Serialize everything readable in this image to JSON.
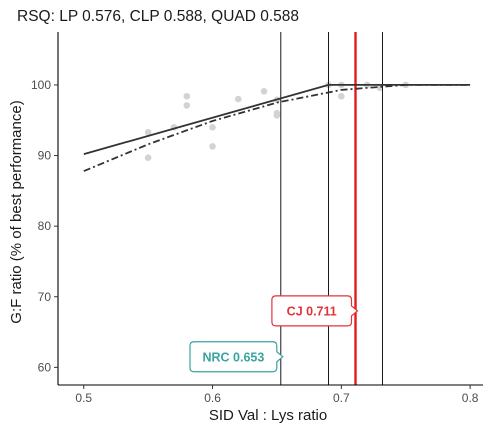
{
  "chart_data": {
    "type": "scatter",
    "title": "RSQ: LP 0.576, CLP 0.588, QUAD 0.588",
    "xlabel": "SID Val : Lys ratio",
    "ylabel": "G:F ratio (% of best performance)",
    "xlim": [
      0.48,
      0.81
    ],
    "ylim": [
      57.5,
      107.5
    ],
    "xticks": [
      0.5,
      0.6,
      0.7,
      0.8
    ],
    "xtick_labels": [
      "0.5",
      "0.6",
      "0.7",
      "0.8"
    ],
    "yticks": [
      60,
      70,
      80,
      90,
      100
    ],
    "ytick_labels": [
      "60",
      "70",
      "80",
      "90",
      "100"
    ],
    "grid": false,
    "points": [
      {
        "x": 0.55,
        "y": 93.3
      },
      {
        "x": 0.55,
        "y": 89.7
      },
      {
        "x": 0.57,
        "y": 94.0
      },
      {
        "x": 0.58,
        "y": 98.4
      },
      {
        "x": 0.58,
        "y": 97.1
      },
      {
        "x": 0.6,
        "y": 94.0
      },
      {
        "x": 0.6,
        "y": 91.3
      },
      {
        "x": 0.62,
        "y": 98.0
      },
      {
        "x": 0.64,
        "y": 99.1
      },
      {
        "x": 0.65,
        "y": 97.9
      },
      {
        "x": 0.65,
        "y": 96.0
      },
      {
        "x": 0.65,
        "y": 95.7
      },
      {
        "x": 0.69,
        "y": 100.0
      },
      {
        "x": 0.7,
        "y": 98.4
      },
      {
        "x": 0.7,
        "y": 100.0
      },
      {
        "x": 0.72,
        "y": 100.0
      },
      {
        "x": 0.73,
        "y": 99.6
      },
      {
        "x": 0.75,
        "y": 100.0
      }
    ],
    "series": [
      {
        "type": "linear-plateau",
        "style": "solid",
        "points": [
          [
            0.5,
            90.2
          ],
          [
            0.69,
            100.0
          ],
          [
            0.8,
            100.0
          ]
        ]
      },
      {
        "type": "quadratic",
        "style": "dashdot",
        "points": [
          [
            0.5,
            87.8
          ],
          [
            0.55,
            91.6
          ],
          [
            0.6,
            94.9
          ],
          [
            0.65,
            97.5
          ],
          [
            0.7,
            99.3
          ],
          [
            0.75,
            100.0
          ],
          [
            0.8,
            100.0
          ]
        ]
      }
    ],
    "vlines": [
      {
        "x": 0.653,
        "color": "#000000"
      },
      {
        "x": 0.69,
        "color": "#000000"
      },
      {
        "x": 0.732,
        "color": "#000000"
      },
      {
        "x": 0.711,
        "color": "#e41a1c"
      }
    ],
    "annotations": [
      {
        "text": "CJ 0.711",
        "x": 0.711,
        "y": 68,
        "color": "#e2333a"
      },
      {
        "text": "NRC 0.653",
        "x": 0.653,
        "y": 61.5,
        "color": "#3aa3a0"
      }
    ],
    "colors": {
      "point": "#d3d3d3",
      "fit": "#333333",
      "axis": "#000000"
    }
  }
}
